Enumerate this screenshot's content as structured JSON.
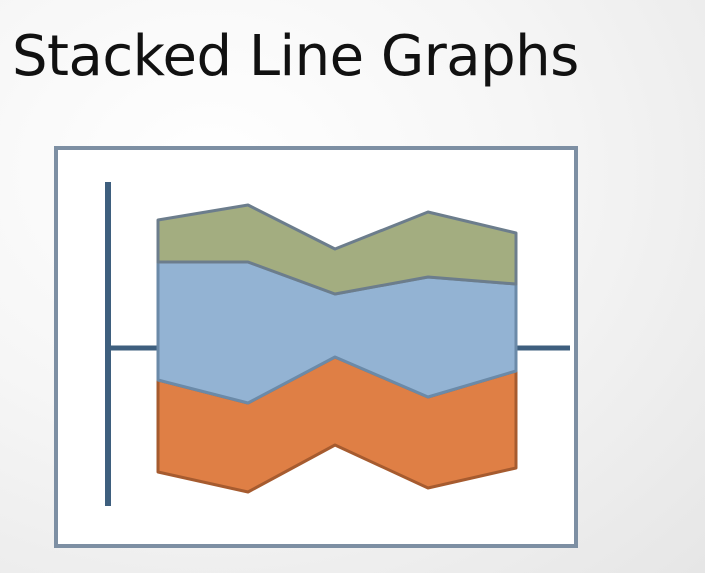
{
  "slide": {
    "title": "Stacked Line Graphs"
  },
  "diagram": {
    "description_type": "stacked-line-graph-illustration",
    "colors": {
      "axis": "#3e5f7e",
      "frame": "#7d8fa3",
      "top_band_fill": "#a3ad80",
      "top_band_stroke": "#6c7d8c",
      "middle_band_fill": "#93b3d3",
      "middle_band_stroke": "#6b8aa8",
      "bottom_band_fill": "#df7f45",
      "bottom_band_stroke": "#a65b2f",
      "background": "#f4f4f4"
    }
  }
}
